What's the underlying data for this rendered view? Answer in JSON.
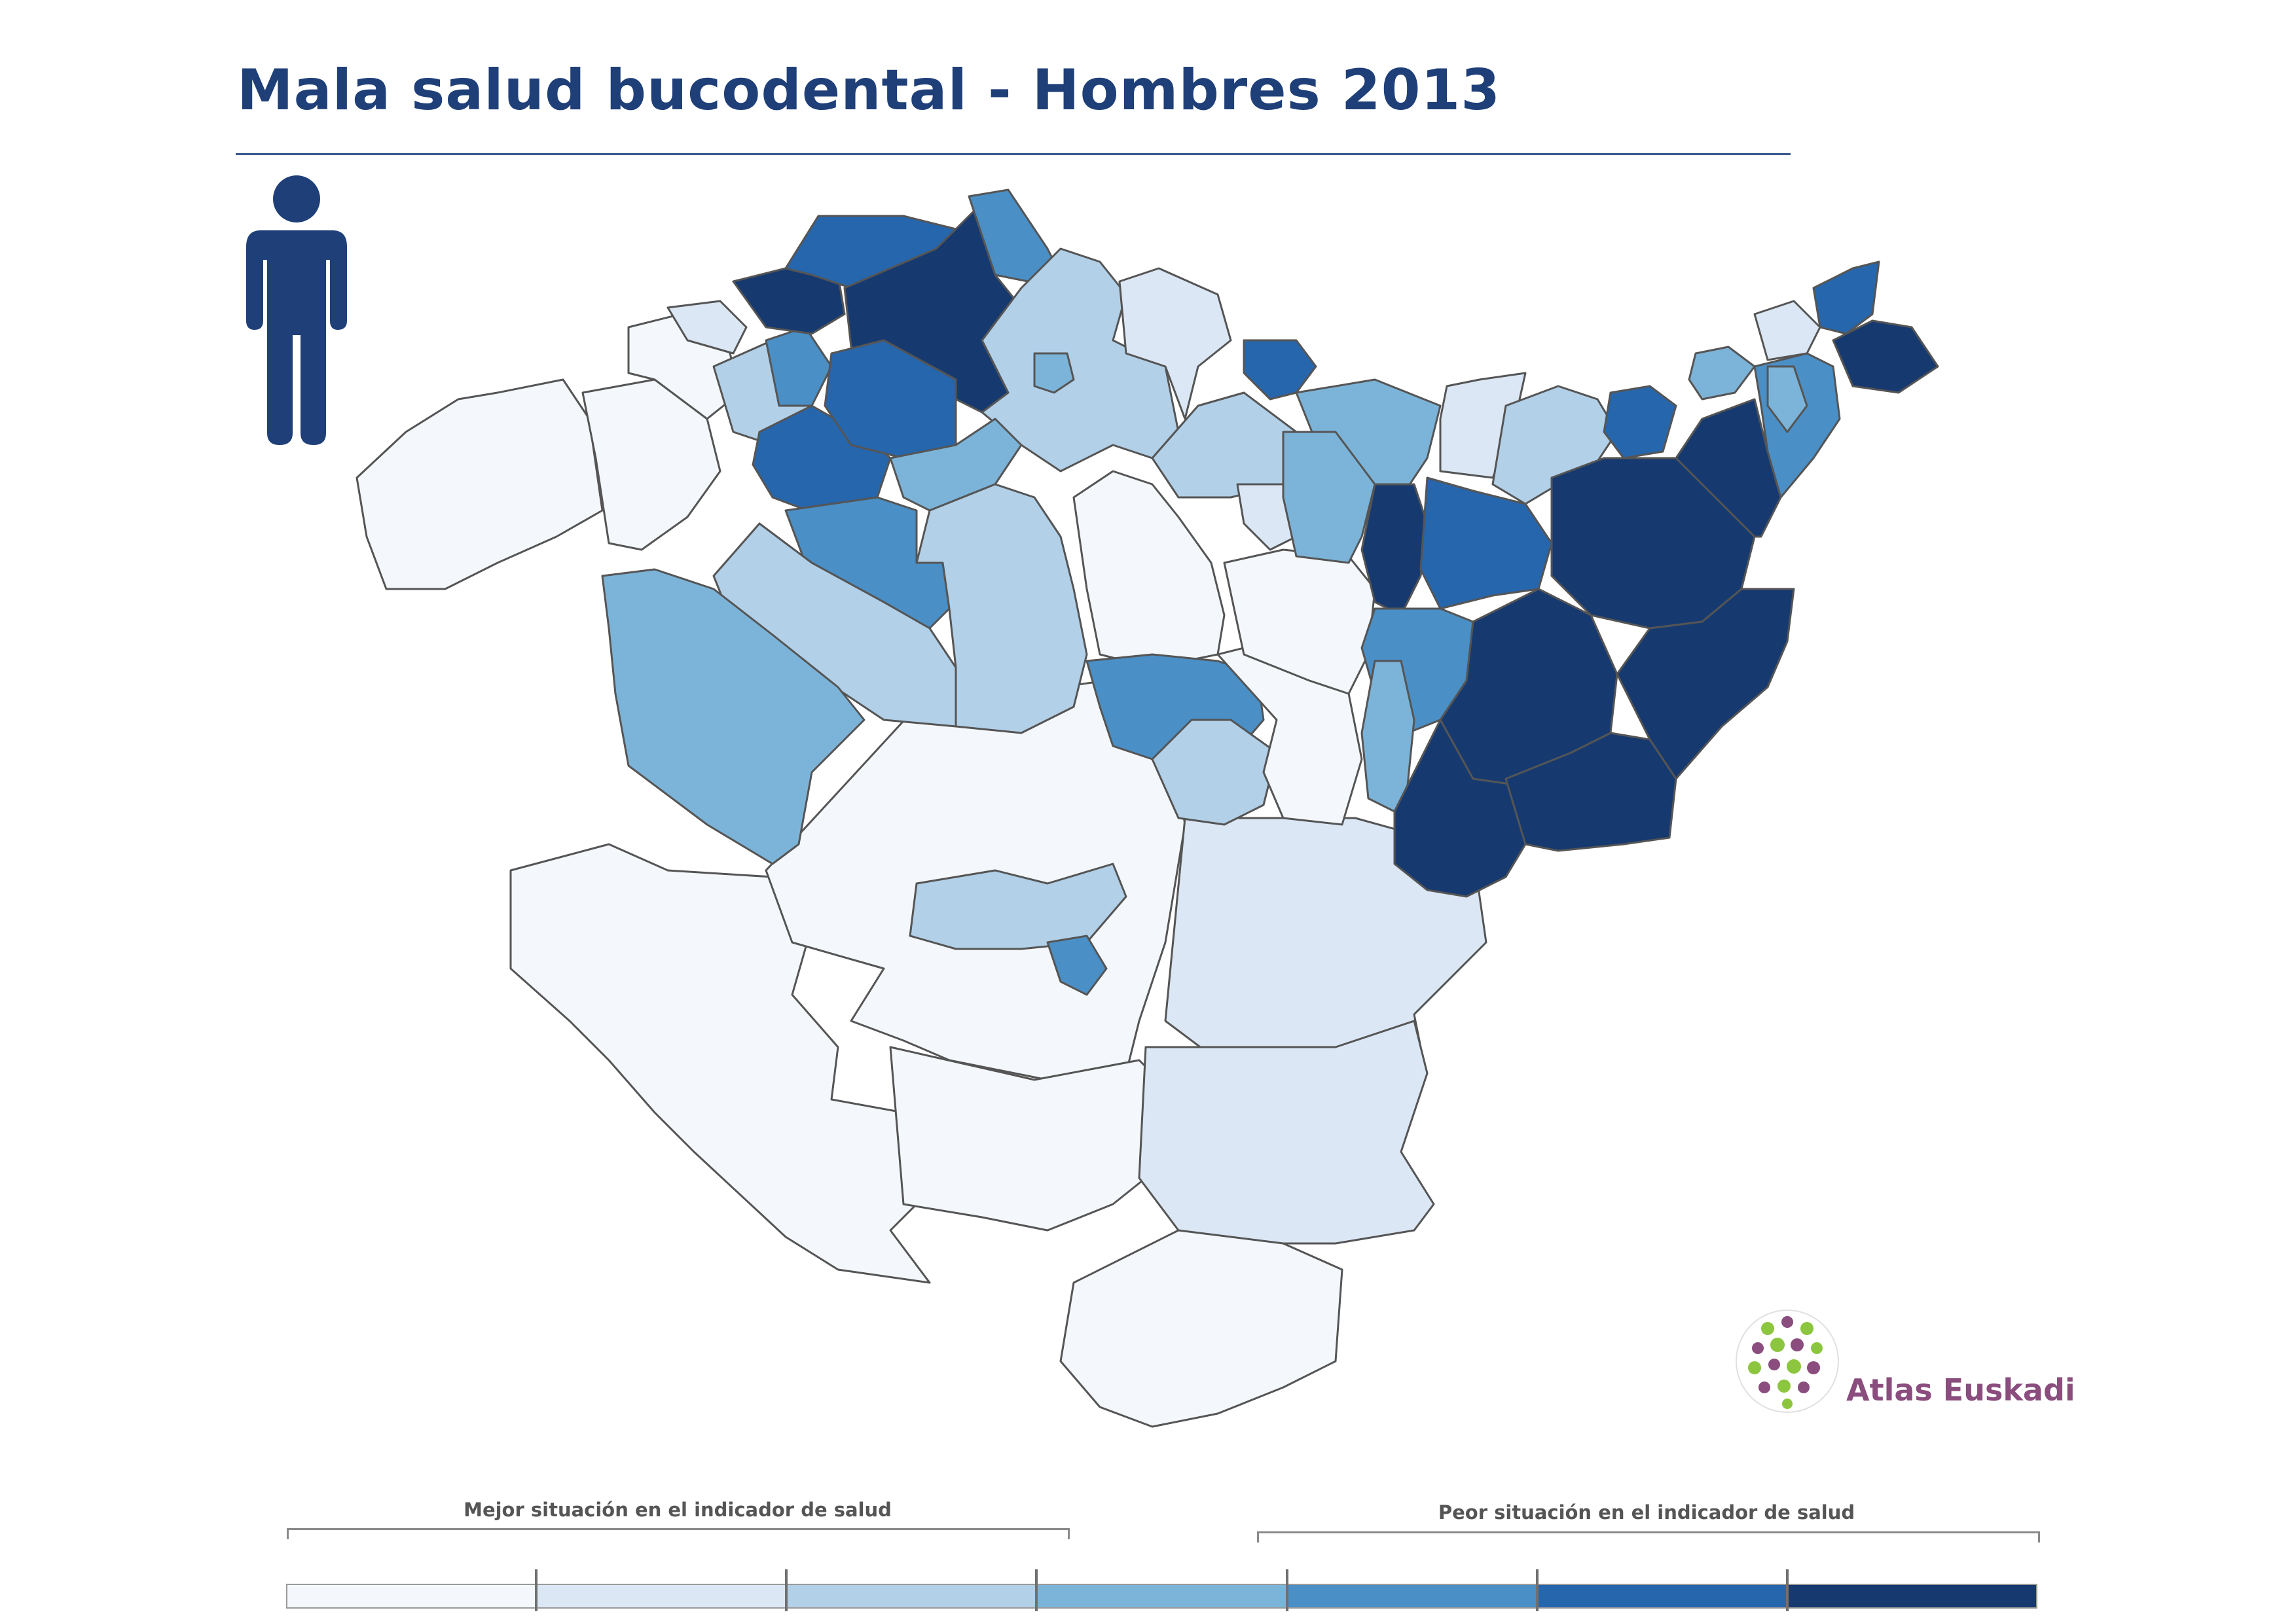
{
  "title": "Mala salud bucodental - Hombres 2013",
  "person_icon": "male-person-icon",
  "logo": {
    "text": "Atlas Euskadi",
    "icon": "atlas-euskadi-logo"
  },
  "legend": {
    "better_label": "Mejor situación en el indicador de salud",
    "worse_label": "Peor situación en el indicador de salud",
    "classes": [
      "#f4f8fc",
      "#dbe7f5",
      "#b2d0e8",
      "#7cb4d9",
      "#4a8fc6",
      "#2666ad",
      "#163a70"
    ]
  },
  "colors": {
    "title": "#1f3f78",
    "border": "#555555",
    "logo_text": "#8a4d7e"
  }
}
